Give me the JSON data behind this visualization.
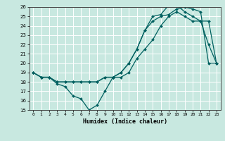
{
  "title": "",
  "xlabel": "Humidex (Indice chaleur)",
  "xlim": [
    -0.5,
    23.5
  ],
  "ylim": [
    15,
    26
  ],
  "xticks": [
    0,
    1,
    2,
    3,
    4,
    5,
    6,
    7,
    8,
    9,
    10,
    11,
    12,
    13,
    14,
    15,
    16,
    17,
    18,
    19,
    20,
    21,
    22,
    23
  ],
  "yticks": [
    15,
    16,
    17,
    18,
    19,
    20,
    21,
    22,
    23,
    24,
    25,
    26
  ],
  "bg_color": "#c8e8e0",
  "line_color": "#006060",
  "grid_color": "#ffffff",
  "line1_x": [
    0,
    1,
    2,
    3,
    4,
    5,
    6,
    7,
    8,
    9,
    10,
    11,
    12,
    13,
    14,
    15,
    16,
    17,
    18,
    19,
    20,
    21,
    22,
    23
  ],
  "line1_y": [
    19.0,
    18.5,
    18.5,
    17.8,
    17.5,
    16.5,
    16.2,
    15.0,
    15.5,
    17.0,
    18.5,
    18.5,
    19.0,
    20.5,
    21.5,
    22.5,
    24.0,
    25.0,
    25.5,
    25.0,
    24.5,
    24.5,
    22.0,
    20.0
  ],
  "line2_x": [
    0,
    1,
    2,
    3,
    4,
    5,
    6,
    7,
    8,
    9,
    10,
    11,
    12,
    13,
    14,
    15,
    16,
    17,
    18,
    19,
    20,
    21,
    22,
    23
  ],
  "line2_y": [
    19.0,
    18.5,
    18.5,
    18.0,
    18.0,
    18.0,
    18.0,
    18.0,
    18.0,
    18.5,
    18.5,
    19.0,
    20.0,
    21.5,
    23.5,
    24.5,
    25.0,
    25.2,
    25.8,
    26.0,
    25.8,
    25.5,
    20.0,
    20.0
  ],
  "line3_x": [
    0,
    1,
    2,
    3,
    4,
    5,
    6,
    7,
    8,
    9,
    10,
    11,
    12,
    13,
    14,
    15,
    16,
    17,
    18,
    19,
    20,
    21,
    22,
    23
  ],
  "line3_y": [
    19.0,
    18.5,
    18.5,
    18.0,
    18.0,
    18.0,
    18.0,
    18.0,
    18.0,
    18.5,
    18.5,
    19.0,
    20.0,
    21.5,
    23.5,
    25.0,
    25.2,
    26.2,
    26.2,
    25.5,
    25.0,
    24.5,
    24.5,
    20.0
  ]
}
